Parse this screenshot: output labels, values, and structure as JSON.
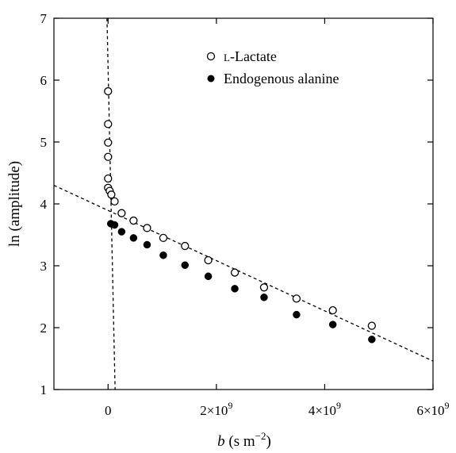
{
  "chart_data": {
    "type": "scatter",
    "title": "",
    "xlabel": {
      "italic": "b",
      "rest": " (s m",
      "sup": "−2",
      "close": ")"
    },
    "ylabel": "ln (amplitude)",
    "xlim": [
      -1000000000,
      6000000000
    ],
    "ylim": [
      1,
      7
    ],
    "yticks": [
      {
        "value": 1,
        "label": "1"
      },
      {
        "value": 2,
        "label": "2"
      },
      {
        "value": 3,
        "label": "3"
      },
      {
        "value": 4,
        "label": "4"
      },
      {
        "value": 5,
        "label": "5"
      },
      {
        "value": 6,
        "label": "6"
      },
      {
        "value": 7,
        "label": "7"
      }
    ],
    "xticks": [
      {
        "value": 0,
        "mant": "0",
        "exp": ""
      },
      {
        "value": 2000000000,
        "mant": "2×10",
        "exp": "9"
      },
      {
        "value": 4000000000,
        "mant": "4×10",
        "exp": "9"
      },
      {
        "value": 6000000000,
        "mant": "6×10",
        "exp": "9"
      }
    ],
    "grid": false,
    "legend_position": "top-right",
    "series": [
      {
        "name": "L-Lactate",
        "name_parts": {
          "sc": "l",
          "rest": "-Lactate"
        },
        "marker": "open-circle",
        "x": [
          0,
          0,
          0,
          0,
          0,
          0,
          30000000,
          60000000,
          120000000,
          250000000,
          470000000,
          720000000,
          1020000000,
          1420000000,
          1850000000,
          2340000000,
          2880000000,
          3480000000,
          4150000000,
          4870000000
        ],
        "y": [
          5.82,
          5.29,
          4.99,
          4.76,
          4.41,
          4.26,
          4.21,
          4.15,
          4.04,
          3.85,
          3.73,
          3.61,
          3.45,
          3.32,
          3.09,
          2.89,
          2.65,
          2.47,
          2.28,
          2.03
        ]
      },
      {
        "name": "Endogenous alanine",
        "marker": "filled-circle",
        "x": [
          50000000,
          120000000,
          250000000,
          470000000,
          720000000,
          1020000000,
          1420000000,
          1850000000,
          2340000000,
          2880000000,
          3480000000,
          4150000000,
          4870000000
        ],
        "y": [
          3.68,
          3.66,
          3.55,
          3.45,
          3.34,
          3.17,
          3.01,
          2.83,
          2.63,
          2.49,
          2.21,
          2.05,
          1.81
        ]
      }
    ],
    "fit_lines": [
      {
        "style": "dashed",
        "x": [
          -1000000000,
          6000000000
        ],
        "y": [
          4.3,
          1.46
        ]
      },
      {
        "style": "dashed",
        "x": [
          -20000000,
          130000000
        ],
        "y": [
          7.0,
          0.98
        ]
      }
    ]
  }
}
